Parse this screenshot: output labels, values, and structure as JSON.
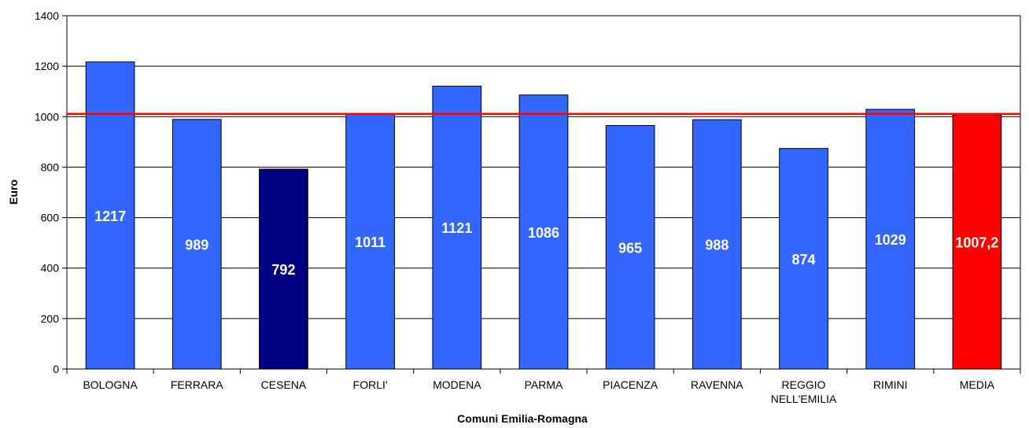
{
  "chart_data": {
    "type": "bar",
    "xlabel": "Comuni Emilia-Romagna",
    "ylabel": "Euro",
    "ylim": [
      0,
      1400
    ],
    "yticks": [
      0,
      200,
      400,
      600,
      800,
      1000,
      1200,
      1400
    ],
    "grid": "horizontal",
    "categories": [
      [
        "BOLOGNA"
      ],
      [
        "FERRARA"
      ],
      [
        "CESENA"
      ],
      [
        "FORLI'"
      ],
      [
        "MODENA"
      ],
      [
        "PARMA"
      ],
      [
        "PIACENZA"
      ],
      [
        "RAVENNA"
      ],
      [
        "REGGIO",
        "NELL'EMILIA"
      ],
      [
        "RIMINI"
      ],
      [
        "MEDIA"
      ]
    ],
    "values": [
      1217,
      989,
      792,
      1011,
      1121,
      1086,
      965,
      988,
      874,
      1029,
      1007.2
    ],
    "value_labels": [
      "1217",
      "989",
      "792",
      "1011",
      "1121",
      "1086",
      "965",
      "988",
      "874",
      "1029",
      "1007,2"
    ],
    "bar_colors": [
      "#3366ff",
      "#3366ff",
      "#000080",
      "#3366ff",
      "#3366ff",
      "#3366ff",
      "#3366ff",
      "#3366ff",
      "#3366ff",
      "#3366ff",
      "#ff0000"
    ],
    "reference_line": {
      "value": 1011,
      "color": "#ff0000"
    },
    "colors": {
      "grid": "#000000",
      "axis": "#000000",
      "bar_stroke": "#000000"
    }
  }
}
